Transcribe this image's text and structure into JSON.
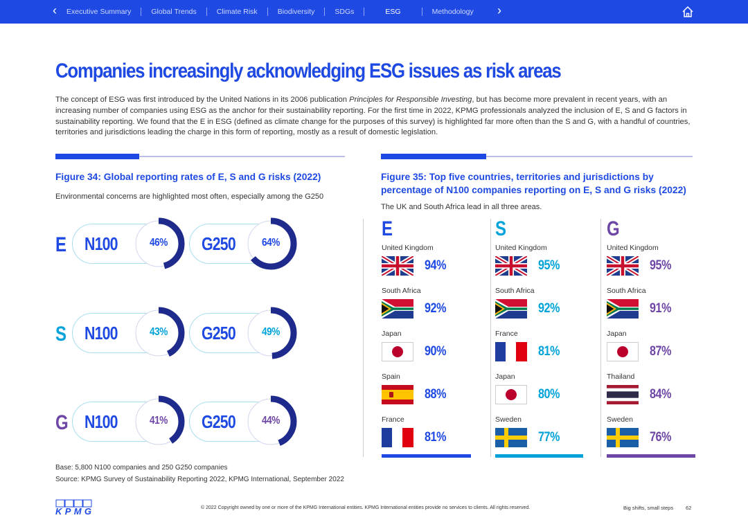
{
  "nav": {
    "items": [
      "Executive Summary",
      "Global Trends",
      "Climate Risk",
      "Biodiversity",
      "SDGs",
      "ESG",
      "Methodology"
    ],
    "active": "ESG"
  },
  "page": {
    "title": "Companies increasingly acknowledging ESG issues as risk areas",
    "intro_pre": "The concept of ESG was first introduced by the United Nations in its 2006 publication ",
    "intro_em": "Principles for Responsible Investing",
    "intro_post": ", but has become more prevalent in recent years, with an increasing number of companies using ESG as the anchor for their sustainability reporting. For the first time in 2022, KPMG professionals analyzed the inclusion of E, S and G factors in sustainability reporting. We found that the E in ESG (defined as climate change for the purposes of this survey) is highlighted far more often than the S and G, with a handful of countries, territories and jurisdictions leading the charge in this form of reporting, mostly as a result of domestic legislation."
  },
  "colors": {
    "E": "#1e49e2",
    "S": "#00a3d9",
    "G": "#6e46a6",
    "navy": "#1e2a8c"
  },
  "chart_data": [
    {
      "type": "donut",
      "title": "Figure 34: Global reporting rates of E, S and G risks (2022)",
      "subtitle": "Environmental concerns are highlighted most often, especially among the G250",
      "rows": [
        {
          "letter": "E",
          "series": [
            {
              "name": "N100",
              "value": 46
            },
            {
              "name": "G250",
              "value": 64
            }
          ]
        },
        {
          "letter": "S",
          "series": [
            {
              "name": "N100",
              "value": 43
            },
            {
              "name": "G250",
              "value": 49
            }
          ]
        },
        {
          "letter": "G",
          "series": [
            {
              "name": "N100",
              "value": 41
            },
            {
              "name": "G250",
              "value": 44
            }
          ]
        }
      ],
      "base": "Base: 5,800 N100 companies and 250 G250 companies",
      "source": "Source: KPMG Survey of Sustainability Reporting 2022, KPMG International, September 2022"
    },
    {
      "type": "table",
      "title": "Figure 35: Top five countries, territories and jurisdictions by percentage of N100 companies reporting on E, S and G risks (2022)",
      "subtitle": "The UK and South Africa lead in all three areas.",
      "columns": [
        {
          "letter": "E",
          "rows": [
            {
              "country": "United Kingdom",
              "value": 94,
              "flag": "uk-flag"
            },
            {
              "country": "South Africa",
              "value": 92,
              "flag": "south-africa-flag"
            },
            {
              "country": "Japan",
              "value": 90,
              "flag": "japan-flag"
            },
            {
              "country": "Spain",
              "value": 88,
              "flag": "spain-flag"
            },
            {
              "country": "France",
              "value": 81,
              "flag": "france-flag"
            }
          ]
        },
        {
          "letter": "S",
          "rows": [
            {
              "country": "United Kingdom",
              "value": 95,
              "flag": "uk-flag"
            },
            {
              "country": "South Africa",
              "value": 92,
              "flag": "south-africa-flag"
            },
            {
              "country": "France",
              "value": 81,
              "flag": "france-flag"
            },
            {
              "country": "Japan",
              "value": 80,
              "flag": "japan-flag"
            },
            {
              "country": "Sweden",
              "value": 77,
              "flag": "sweden-flag"
            }
          ]
        },
        {
          "letter": "G",
          "rows": [
            {
              "country": "United Kingdom",
              "value": 95,
              "flag": "uk-flag"
            },
            {
              "country": "South Africa",
              "value": 91,
              "flag": "south-africa-flag"
            },
            {
              "country": "Japan",
              "value": 87,
              "flag": "japan-flag"
            },
            {
              "country": "Thailand",
              "value": 84,
              "flag": "thailand-flag"
            },
            {
              "country": "Sweden",
              "value": 76,
              "flag": "sweden-flag"
            }
          ]
        }
      ]
    }
  ],
  "footer": {
    "copyright": "© 2022 Copyright owned by one or more of the KPMG International entities. KPMG International entities provide no services to clients. All rights reserved.",
    "tagline": "Big shifts, small steps",
    "page_number": "62",
    "logo_text": "KPMG"
  }
}
